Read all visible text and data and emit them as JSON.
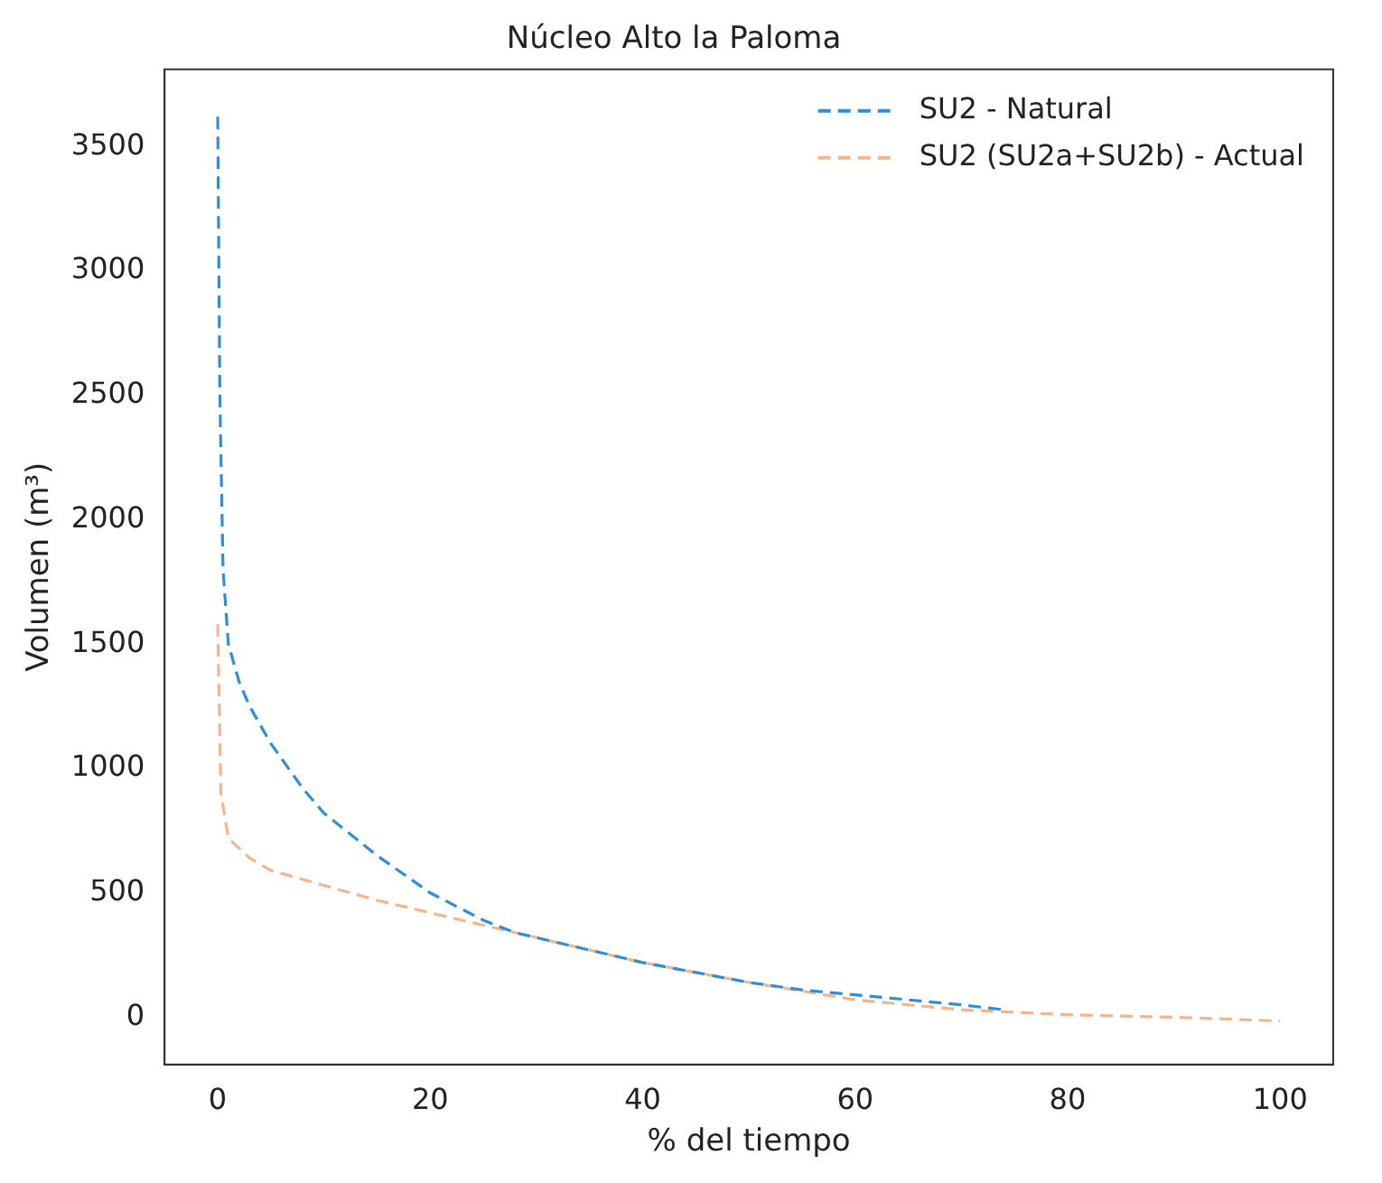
{
  "chart_data": {
    "type": "line",
    "title": "Núcleo Alto la Paloma",
    "xlabel": "% del tiempo",
    "ylabel": "Volumen (m³)",
    "xlim": [
      -5,
      105
    ],
    "xticks": [
      0,
      20,
      40,
      60,
      80,
      100
    ],
    "ylim": [
      -190,
      3810
    ],
    "yticks": [
      0,
      500,
      1000,
      1500,
      2000,
      2500,
      3000,
      3500
    ],
    "grid": false,
    "legend": "top right",
    "line_style": "dashed",
    "marker": "none",
    "series": [
      {
        "name": "SU2 - Natural",
        "color": "#2e8fd6",
        "x": [
          0,
          0.2,
          0.5,
          1,
          2,
          3,
          5,
          8,
          10,
          15,
          20,
          25,
          28,
          35,
          40,
          50,
          55,
          60,
          65,
          70,
          74
        ],
        "values": [
          3620,
          2500,
          1800,
          1500,
          1350,
          1250,
          1100,
          920,
          820,
          650,
          500,
          390,
          340,
          270,
          220,
          140,
          110,
          90,
          70,
          50,
          30
        ]
      },
      {
        "name": "SU2 (SU2a+SU2b) - Actual",
        "color": "#f5b58a",
        "x": [
          0,
          0.3,
          1,
          3,
          5,
          10,
          15,
          20,
          25,
          30,
          40,
          50,
          60,
          70,
          80,
          90,
          100
        ],
        "values": [
          1580,
          900,
          720,
          640,
          590,
          530,
          470,
          420,
          370,
          320,
          220,
          140,
          70,
          30,
          10,
          0,
          -15
        ]
      }
    ]
  }
}
